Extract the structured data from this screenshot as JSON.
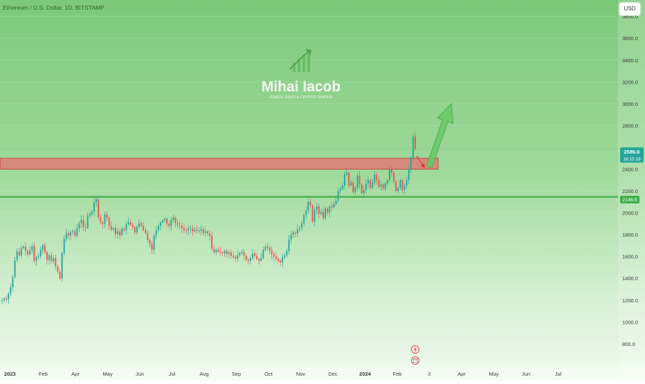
{
  "header": {
    "symbol_title": "Ethereum / U.S. Dollar, 1D, BITSTAMP",
    "currency": "USD"
  },
  "watermark": {
    "brand": "Mihai Iacob",
    "tagline": "FOREX, GOLD & CRYPTO TRADER"
  },
  "price_tags": {
    "last_price": "2586.6",
    "countdown": "16:15:19",
    "support_level": "2146.6"
  },
  "colors": {
    "up": "#26a69a",
    "down": "#ef5350",
    "support_line": "#3fae49",
    "resistance_zone": "#e57373",
    "arrow_up": "#6cc96a",
    "arrow_down": "#e53935",
    "price_tag": "#26a69a"
  },
  "chart_data": {
    "type": "candlestick",
    "y_ticks": [
      "800.0",
      "1000.0",
      "1200.0",
      "1400.0",
      "1600.0",
      "1800.0",
      "2000.0",
      "2200.0",
      "2400.0",
      "2800.0",
      "3000.0",
      "3200.0",
      "3400.0",
      "3600.0",
      "3800.0"
    ],
    "y_tick_values": [
      800,
      1000,
      1200,
      1400,
      1600,
      1800,
      2000,
      2200,
      2400,
      2800,
      3000,
      3200,
      3400,
      3600,
      3800
    ],
    "x_ticks": [
      "2023",
      "Feb",
      "Apr",
      "May",
      "Jun",
      "Jul",
      "Aug",
      "Sep",
      "Oct",
      "Nov",
      "Dec",
      "2024",
      "Feb",
      "2",
      "Apr",
      "May",
      "Jun",
      "Jul"
    ],
    "ylim": [
      590,
      3950
    ],
    "last_price": 2586.6,
    "support_level": 2146.6,
    "resistance_zone": [
      2400,
      2500
    ],
    "projected_target": 3000,
    "pullback_target": 2420,
    "series_closes": [
      1198,
      1215,
      1207,
      1259,
      1320,
      1412,
      1565,
      1645,
      1608,
      1676,
      1689,
      1651,
      1620,
      1655,
      1695,
      1560,
      1594,
      1604,
      1662,
      1703,
      1641,
      1568,
      1610,
      1555,
      1585,
      1510,
      1460,
      1398,
      1630,
      1760,
      1815,
      1790,
      1820,
      1830,
      1790,
      1860,
      1905,
      1935,
      1870,
      1860,
      1975,
      1990,
      2012,
      2100,
      2125,
      1960,
      1915,
      1898,
      1985,
      1955,
      1880,
      1845,
      1860,
      1805,
      1830,
      1795,
      1855,
      1840,
      1895,
      1915,
      1890,
      1870,
      1820,
      1870,
      1905,
      1880,
      1840,
      1815,
      1752,
      1715,
      1660,
      1790,
      1840,
      1880,
      1912,
      1930,
      1945,
      1900,
      1878,
      1935,
      1955,
      1908,
      1885,
      1880,
      1860,
      1842,
      1838,
      1855,
      1858,
      1830,
      1845,
      1835,
      1835,
      1850,
      1815,
      1830,
      1810,
      1790,
      1670,
      1640,
      1660,
      1645,
      1636,
      1630,
      1650,
      1622,
      1635,
      1605,
      1595,
      1580,
      1610,
      1630,
      1640,
      1604,
      1570,
      1560,
      1585,
      1628,
      1605,
      1575,
      1560,
      1590,
      1660,
      1690,
      1682,
      1655,
      1620,
      1600,
      1580,
      1560,
      1545,
      1595,
      1610,
      1650,
      1755,
      1800,
      1820,
      1810,
      1850,
      1860,
      1900,
      1980,
      2020,
      2100,
      2070,
      1920,
      2030,
      2060,
      1990,
      2010,
      1950,
      2040,
      2000,
      2060,
      2050,
      2080,
      2110,
      2200,
      2220,
      2250,
      2350,
      2370,
      2250,
      2280,
      2190,
      2230,
      2340,
      2260,
      2180,
      2210,
      2270,
      2300,
      2230,
      2280,
      2350,
      2300,
      2240,
      2260,
      2220,
      2270,
      2300,
      2400,
      2370,
      2290,
      2200,
      2230,
      2300,
      2210,
      2250,
      2300,
      2400,
      2500,
      2700,
      2586.6
    ],
    "title": "Ethereum / U.S. Dollar, 1D, BITSTAMP"
  }
}
